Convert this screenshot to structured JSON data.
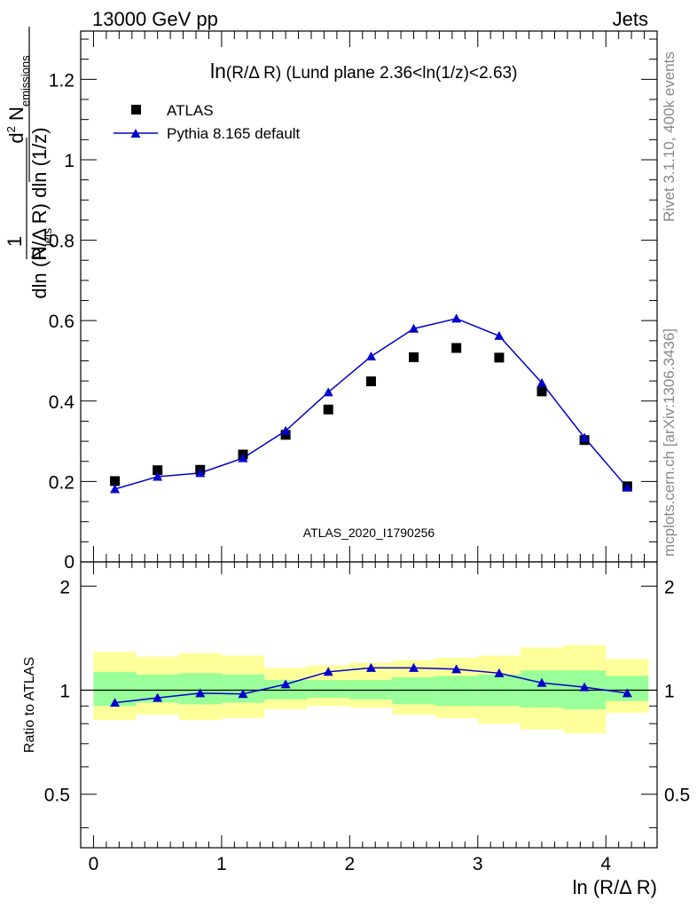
{
  "header": {
    "energy_label": "13000 GeV pp",
    "category_label": "Jets",
    "plot_title_main": "ln",
    "plot_title_var": "(R/Δ R)",
    "plot_title_cut": "(Lund plane 2.36<ln(1/z)<2.63)",
    "analysis_id": "ATLAS_2020_I1790256",
    "side_label_rivet": "Rivet 3.1.10,  400k events",
    "side_label_site": "mcplots.cern.ch [arXiv:1306.3436]"
  },
  "legend": {
    "data_label": "ATLAS",
    "mc_label": "Pythia 8.165 default"
  },
  "ratio_panel": {
    "ylabel": "Ratio to ATLAS"
  },
  "colors": {
    "mc_line": "#0000cc",
    "data_marker": "#000000",
    "band_inner": "#99ff99",
    "band_outer": "#ffff99"
  },
  "chart_data": {
    "type": "scatter",
    "xlabel": "ln (R/Δ R)",
    "ylabel_parts": {
      "frac_numerator": "1",
      "frac_denominator_N": "N",
      "frac_denominator_sub": "jets",
      "main_numerator_d": "d",
      "main_numerator_sup": "2",
      "main_numerator_N": "N",
      "main_numerator_sub": "emissions",
      "main_denominator": "dln (R/Δ R) dln (1/z)"
    },
    "xlim": [
      -0.1,
      4.4
    ],
    "ylim": [
      0,
      1.32
    ],
    "ratio_ylim": [
      0.35,
      2.35
    ],
    "x_ticks": [
      0,
      1,
      2,
      3,
      4
    ],
    "y_ticks": [
      0.2,
      0.4,
      0.6,
      0.8,
      1,
      1.2
    ],
    "y_tick_labels": [
      "0.2",
      "0.4",
      "0.6",
      "0.8",
      "1",
      "1.2"
    ],
    "y_zero_label": "0",
    "ratio_ticks": [
      0.5,
      1,
      2
    ],
    "ratio_tick_labels": [
      "0.5",
      "1",
      "2"
    ],
    "x": [
      0.167,
      0.5,
      0.833,
      1.167,
      1.5,
      1.833,
      2.167,
      2.5,
      2.833,
      3.167,
      3.5,
      3.833,
      4.167
    ],
    "bin_edges": [
      0,
      0.333,
      0.667,
      1.0,
      1.333,
      1.667,
      2.0,
      2.333,
      2.667,
      3.0,
      3.333,
      3.667,
      4.0,
      4.333
    ],
    "series": [
      {
        "name": "ATLAS",
        "values": [
          0.201,
          0.228,
          0.229,
          0.267,
          0.316,
          0.379,
          0.449,
          0.509,
          0.532,
          0.508,
          0.424,
          0.303,
          0.188
        ]
      },
      {
        "name": "Pythia 8.165 default",
        "values": [
          0.181,
          0.212,
          0.221,
          0.258,
          0.326,
          0.422,
          0.511,
          0.58,
          0.605,
          0.562,
          0.445,
          0.309,
          0.185
        ],
        "errors": [
          0.004,
          0.004,
          0.004,
          0.005,
          0.005,
          0.006,
          0.006,
          0.007,
          0.007,
          0.007,
          0.006,
          0.005,
          0.004
        ]
      }
    ],
    "ratio": {
      "values": [
        0.92,
        0.95,
        0.98,
        0.975,
        1.04,
        1.13,
        1.16,
        1.16,
        1.15,
        1.12,
        1.05,
        1.02,
        0.98
      ],
      "errors": [
        0.02,
        0.02,
        0.02,
        0.02,
        0.02,
        0.02,
        0.02,
        0.02,
        0.02,
        0.02,
        0.02,
        0.02,
        0.025
      ],
      "band_inner": [
        [
          0.9,
          1.13
        ],
        [
          0.92,
          1.11
        ],
        [
          0.91,
          1.12
        ],
        [
          0.92,
          1.11
        ],
        [
          0.94,
          1.07
        ],
        [
          0.95,
          1.07
        ],
        [
          0.94,
          1.07
        ],
        [
          0.91,
          1.09
        ],
        [
          0.9,
          1.1
        ],
        [
          0.9,
          1.11
        ],
        [
          0.89,
          1.14
        ],
        [
          0.88,
          1.14
        ],
        [
          0.93,
          1.1
        ]
      ],
      "band_outer": [
        [
          0.82,
          1.29
        ],
        [
          0.85,
          1.25
        ],
        [
          0.82,
          1.28
        ],
        [
          0.83,
          1.26
        ],
        [
          0.88,
          1.16
        ],
        [
          0.9,
          1.18
        ],
        [
          0.89,
          1.2
        ],
        [
          0.85,
          1.22
        ],
        [
          0.83,
          1.24
        ],
        [
          0.8,
          1.26
        ],
        [
          0.77,
          1.33
        ],
        [
          0.75,
          1.35
        ],
        [
          0.86,
          1.23
        ]
      ]
    }
  }
}
